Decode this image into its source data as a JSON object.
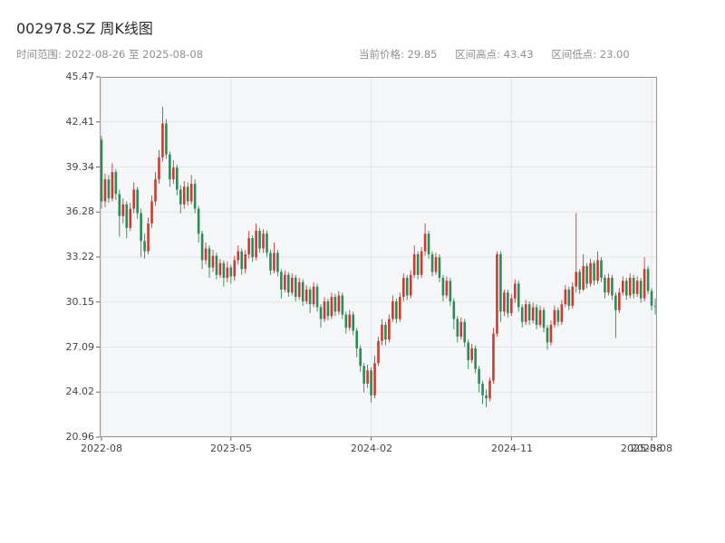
{
  "header": {
    "title": "002978.SZ 周K线图",
    "time_range": "时间范围: 2022-08-26 至 2025-08-08",
    "stats": {
      "current": "当前价格: 29.85",
      "high": "区间高点: 43.43",
      "low": "区间低点: 23.00"
    }
  },
  "chart_data": {
    "type": "candlestick",
    "symbol": "002978.SZ",
    "interval": "weekly",
    "title": "002978.SZ 周K线图",
    "current_price": 29.85,
    "range_high": 43.43,
    "range_low": 23.0,
    "ylim": [
      20.96,
      45.47
    ],
    "y_ticks": [
      "45.47",
      "42.41",
      "39.34",
      "36.28",
      "33.22",
      "30.15",
      "27.09",
      "24.02",
      "20.96"
    ],
    "x_ticks": [
      "2022-08",
      "2023-05",
      "2024-02",
      "2024-11",
      "2025-08"
    ],
    "x_tick_indices": [
      0,
      36,
      75,
      114,
      153
    ],
    "edge_label": "2025-08",
    "grid": true,
    "colors": {
      "up": "#cc3b33",
      "down": "#2e8b57",
      "grid": "#e2e4e8",
      "plot_bg": "#f5f6f8",
      "frame": "#9a9a9a"
    },
    "ohlc_columns": [
      "date",
      "open",
      "high",
      "low",
      "close"
    ],
    "ohlc": [
      [
        "2022-08-26",
        41.2,
        41.45,
        36.5,
        37.0
      ],
      [
        "2022-09-02",
        37.0,
        38.9,
        36.6,
        38.5
      ],
      [
        "2022-09-09",
        38.5,
        38.8,
        36.9,
        37.2
      ],
      [
        "2022-09-16",
        37.2,
        39.6,
        37.0,
        39.0
      ],
      [
        "2022-09-23",
        39.0,
        39.2,
        37.1,
        37.5
      ],
      [
        "2022-09-30",
        37.5,
        37.8,
        34.6,
        36.0
      ],
      [
        "2022-10-07",
        36.0,
        37.2,
        35.5,
        36.8
      ],
      [
        "2022-10-14",
        36.8,
        37.0,
        34.5,
        35.2
      ],
      [
        "2022-10-21",
        35.2,
        36.9,
        35.0,
        36.5
      ],
      [
        "2022-10-28",
        36.5,
        38.3,
        36.2,
        37.8
      ],
      [
        "2022-11-04",
        37.8,
        38.0,
        35.8,
        36.2
      ],
      [
        "2022-11-11",
        36.2,
        36.5,
        33.2,
        34.3
      ],
      [
        "2022-11-18",
        34.3,
        34.8,
        33.1,
        33.6
      ],
      [
        "2022-11-25",
        33.6,
        35.9,
        33.4,
        35.5
      ],
      [
        "2022-12-02",
        35.5,
        37.4,
        35.2,
        37.0
      ],
      [
        "2022-12-09",
        37.0,
        39.0,
        36.7,
        38.5
      ],
      [
        "2022-12-16",
        38.5,
        40.5,
        38.2,
        40.0
      ],
      [
        "2022-12-23",
        40.0,
        43.43,
        39.7,
        42.3
      ],
      [
        "2022-12-30",
        42.3,
        42.6,
        39.9,
        40.2
      ],
      [
        "2023-01-06",
        40.2,
        40.4,
        38.0,
        38.5
      ],
      [
        "2023-01-13",
        38.5,
        39.8,
        38.2,
        39.3
      ],
      [
        "2023-01-20",
        39.3,
        39.5,
        37.4,
        37.8
      ],
      [
        "2023-01-27",
        37.8,
        38.1,
        36.2,
        36.8
      ],
      [
        "2023-02-03",
        36.8,
        38.4,
        36.5,
        38.0
      ],
      [
        "2023-02-10",
        38.0,
        38.3,
        36.7,
        37.0
      ],
      [
        "2023-02-17",
        37.0,
        38.8,
        36.8,
        38.2
      ],
      [
        "2023-02-24",
        38.2,
        38.5,
        36.2,
        36.5
      ],
      [
        "2023-03-03",
        36.5,
        36.7,
        34.2,
        34.8
      ],
      [
        "2023-03-10",
        34.8,
        35.0,
        32.4,
        33.0
      ],
      [
        "2023-03-17",
        33.0,
        34.2,
        32.7,
        33.8
      ],
      [
        "2023-03-24",
        33.8,
        34.0,
        31.8,
        32.5
      ],
      [
        "2023-03-31",
        32.5,
        33.7,
        32.2,
        33.3
      ],
      [
        "2023-04-07",
        33.3,
        33.5,
        31.7,
        32.0
      ],
      [
        "2023-04-14",
        32.0,
        33.1,
        31.8,
        32.8
      ],
      [
        "2023-04-21",
        32.8,
        33.0,
        31.2,
        31.8
      ],
      [
        "2023-04-28",
        31.8,
        32.9,
        31.5,
        32.5
      ],
      [
        "2023-05-05",
        32.5,
        32.7,
        31.4,
        31.9
      ],
      [
        "2023-05-12",
        31.9,
        33.3,
        31.6,
        33.0
      ],
      [
        "2023-05-19",
        33.0,
        34.0,
        32.7,
        33.6
      ],
      [
        "2023-05-26",
        33.6,
        33.8,
        32.0,
        32.4
      ],
      [
        "2023-06-02",
        32.4,
        33.7,
        32.1,
        33.4
      ],
      [
        "2023-06-09",
        33.4,
        35.0,
        33.1,
        34.5
      ],
      [
        "2023-06-16",
        34.5,
        34.7,
        32.9,
        33.2
      ],
      [
        "2023-06-23",
        33.2,
        35.5,
        33.0,
        35.0
      ],
      [
        "2023-06-30",
        35.0,
        35.2,
        33.5,
        33.8
      ],
      [
        "2023-07-07",
        33.8,
        35.1,
        33.5,
        34.8
      ],
      [
        "2023-07-14",
        34.8,
        35.0,
        33.2,
        33.5
      ],
      [
        "2023-07-21",
        33.5,
        33.7,
        32.0,
        32.3
      ],
      [
        "2023-07-28",
        32.3,
        34.2,
        32.1,
        33.5
      ],
      [
        "2023-08-04",
        33.5,
        33.7,
        31.9,
        32.2
      ],
      [
        "2023-08-11",
        32.2,
        32.4,
        30.4,
        31.0
      ],
      [
        "2023-08-18",
        31.0,
        32.3,
        30.8,
        32.0
      ],
      [
        "2023-08-25",
        32.0,
        32.2,
        30.5,
        30.8
      ],
      [
        "2023-09-01",
        30.8,
        32.1,
        30.6,
        31.8
      ],
      [
        "2023-09-08",
        31.8,
        32.0,
        30.2,
        30.5
      ],
      [
        "2023-09-15",
        30.5,
        31.8,
        30.3,
        31.5
      ],
      [
        "2023-09-22",
        31.5,
        31.7,
        29.9,
        30.2
      ],
      [
        "2023-09-29",
        30.2,
        31.3,
        30.0,
        31.0
      ],
      [
        "2023-10-06",
        31.0,
        31.2,
        29.4,
        30.0
      ],
      [
        "2023-10-13",
        30.0,
        31.5,
        29.8,
        31.2
      ],
      [
        "2023-10-20",
        31.2,
        31.4,
        29.5,
        29.8
      ],
      [
        "2023-10-27",
        29.8,
        30.0,
        28.4,
        29.0
      ],
      [
        "2023-11-03",
        29.0,
        30.5,
        28.8,
        30.2
      ],
      [
        "2023-11-10",
        30.2,
        30.4,
        28.9,
        29.2
      ],
      [
        "2023-11-17",
        29.2,
        30.8,
        29.0,
        30.5
      ],
      [
        "2023-11-24",
        30.5,
        30.7,
        29.2,
        29.5
      ],
      [
        "2023-12-01",
        29.5,
        30.9,
        29.3,
        30.6
      ],
      [
        "2023-12-08",
        30.6,
        30.8,
        29.0,
        29.3
      ],
      [
        "2023-12-15",
        29.3,
        29.5,
        28.0,
        28.4
      ],
      [
        "2023-12-22",
        28.4,
        29.6,
        28.2,
        29.3
      ],
      [
        "2023-12-29",
        29.3,
        29.5,
        27.9,
        28.2
      ],
      [
        "2024-01-05",
        28.2,
        28.4,
        26.4,
        27.0
      ],
      [
        "2024-01-12",
        27.0,
        27.2,
        25.4,
        25.8
      ],
      [
        "2024-01-19",
        25.8,
        26.0,
        24.0,
        24.6
      ],
      [
        "2024-01-26",
        24.6,
        25.9,
        24.3,
        25.5
      ],
      [
        "2024-02-02",
        25.5,
        25.7,
        23.3,
        23.8
      ],
      [
        "2024-02-09",
        23.8,
        26.5,
        23.6,
        26.0
      ],
      [
        "2024-02-16",
        26.0,
        27.8,
        25.8,
        27.5
      ],
      [
        "2024-02-23",
        27.5,
        29.0,
        27.2,
        28.6
      ],
      [
        "2024-03-01",
        28.6,
        28.8,
        27.2,
        27.6
      ],
      [
        "2024-03-08",
        27.6,
        29.3,
        27.4,
        29.0
      ],
      [
        "2024-03-15",
        29.0,
        30.6,
        28.8,
        30.2
      ],
      [
        "2024-03-22",
        30.2,
        30.4,
        28.7,
        29.0
      ],
      [
        "2024-03-29",
        29.0,
        30.8,
        28.8,
        30.5
      ],
      [
        "2024-04-05",
        30.5,
        32.1,
        30.2,
        31.8
      ],
      [
        "2024-04-12",
        31.8,
        32.0,
        30.3,
        30.6
      ],
      [
        "2024-04-19",
        30.6,
        32.3,
        30.4,
        32.0
      ],
      [
        "2024-04-26",
        32.0,
        34.0,
        31.8,
        33.4
      ],
      [
        "2024-05-03",
        33.4,
        33.6,
        31.7,
        32.0
      ],
      [
        "2024-05-10",
        32.0,
        33.9,
        31.8,
        33.6
      ],
      [
        "2024-05-17",
        33.6,
        35.5,
        33.3,
        34.8
      ],
      [
        "2024-05-24",
        34.8,
        35.0,
        33.1,
        33.4
      ],
      [
        "2024-05-31",
        33.4,
        33.6,
        31.9,
        32.2
      ],
      [
        "2024-06-07",
        32.2,
        33.5,
        32.0,
        33.2
      ],
      [
        "2024-06-14",
        33.2,
        33.4,
        31.5,
        31.8
      ],
      [
        "2024-06-21",
        31.8,
        32.0,
        30.2,
        30.6
      ],
      [
        "2024-06-28",
        30.6,
        31.9,
        30.4,
        31.6
      ],
      [
        "2024-07-05",
        31.6,
        31.8,
        29.9,
        30.2
      ],
      [
        "2024-07-12",
        30.2,
        30.4,
        28.3,
        29.0
      ],
      [
        "2024-07-19",
        29.0,
        29.2,
        27.4,
        27.8
      ],
      [
        "2024-07-26",
        27.8,
        29.1,
        27.6,
        28.8
      ],
      [
        "2024-08-02",
        28.8,
        29.0,
        27.1,
        27.4
      ],
      [
        "2024-08-09",
        27.4,
        27.6,
        25.6,
        26.2
      ],
      [
        "2024-08-16",
        26.2,
        27.3,
        26.0,
        27.0
      ],
      [
        "2024-08-23",
        27.0,
        27.2,
        25.3,
        25.6
      ],
      [
        "2024-08-30",
        25.6,
        25.8,
        24.0,
        24.6
      ],
      [
        "2024-09-06",
        24.6,
        24.8,
        23.2,
        23.8
      ],
      [
        "2024-09-13",
        23.8,
        24.2,
        23.0,
        23.6
      ],
      [
        "2024-09-20",
        23.6,
        25.0,
        23.4,
        24.8
      ],
      [
        "2024-09-27",
        24.8,
        28.4,
        24.6,
        28.0
      ],
      [
        "2024-10-04",
        28.0,
        33.6,
        27.8,
        33.4
      ],
      [
        "2024-10-11",
        33.4,
        33.6,
        28.8,
        29.5
      ],
      [
        "2024-10-18",
        29.5,
        31.0,
        29.2,
        30.8
      ],
      [
        "2024-10-25",
        30.8,
        31.0,
        29.1,
        29.4
      ],
      [
        "2024-11-01",
        29.4,
        30.7,
        29.2,
        30.4
      ],
      [
        "2024-11-08",
        30.4,
        31.7,
        30.1,
        31.4
      ],
      [
        "2024-11-15",
        31.4,
        31.6,
        29.5,
        29.8
      ],
      [
        "2024-11-22",
        29.8,
        30.0,
        28.4,
        28.8
      ],
      [
        "2024-11-29",
        28.8,
        30.3,
        28.6,
        30.0
      ],
      [
        "2024-12-06",
        30.0,
        30.2,
        28.6,
        28.9
      ],
      [
        "2024-12-13",
        28.9,
        30.1,
        28.7,
        29.8
      ],
      [
        "2024-12-20",
        29.8,
        30.0,
        28.3,
        28.6
      ],
      [
        "2024-12-27",
        28.6,
        29.9,
        28.4,
        29.6
      ],
      [
        "2025-01-03",
        29.6,
        29.8,
        28.1,
        28.4
      ],
      [
        "2025-01-10",
        28.4,
        28.6,
        26.9,
        27.4
      ],
      [
        "2025-01-17",
        27.4,
        28.9,
        27.2,
        28.6
      ],
      [
        "2025-01-24",
        28.6,
        29.9,
        28.4,
        29.6
      ],
      [
        "2025-01-31",
        29.6,
        29.8,
        28.5,
        28.8
      ],
      [
        "2025-02-07",
        28.8,
        30.3,
        28.6,
        30.0
      ],
      [
        "2025-02-14",
        30.0,
        31.3,
        29.8,
        31.0
      ],
      [
        "2025-02-21",
        31.0,
        31.2,
        29.6,
        29.9
      ],
      [
        "2025-02-28",
        29.9,
        31.5,
        29.7,
        31.2
      ],
      [
        "2025-03-07",
        31.2,
        36.2,
        30.8,
        32.2
      ],
      [
        "2025-03-14",
        32.2,
        32.4,
        30.7,
        31.0
      ],
      [
        "2025-03-21",
        31.0,
        33.4,
        30.9,
        32.6
      ],
      [
        "2025-03-28",
        32.6,
        32.8,
        31.1,
        31.4
      ],
      [
        "2025-04-04",
        31.4,
        33.1,
        31.2,
        32.8
      ],
      [
        "2025-04-11",
        32.8,
        33.0,
        31.3,
        31.6
      ],
      [
        "2025-04-18",
        31.6,
        33.6,
        31.4,
        33.0
      ],
      [
        "2025-04-25",
        33.0,
        33.2,
        31.5,
        31.8
      ],
      [
        "2025-05-02",
        31.8,
        32.0,
        30.4,
        30.8
      ],
      [
        "2025-05-09",
        30.8,
        32.1,
        30.6,
        31.8
      ],
      [
        "2025-05-16",
        31.8,
        32.0,
        30.3,
        30.6
      ],
      [
        "2025-05-23",
        30.6,
        30.8,
        27.7,
        29.6
      ],
      [
        "2025-05-30",
        29.6,
        31.1,
        29.4,
        30.8
      ],
      [
        "2025-06-06",
        30.8,
        31.9,
        30.6,
        31.6
      ],
      [
        "2025-06-13",
        31.6,
        31.8,
        30.3,
        30.6
      ],
      [
        "2025-06-20",
        30.6,
        32.1,
        30.4,
        31.8
      ],
      [
        "2025-06-27",
        31.8,
        32.0,
        30.4,
        30.7
      ],
      [
        "2025-07-04",
        30.7,
        31.9,
        30.5,
        31.6
      ],
      [
        "2025-07-11",
        31.6,
        31.8,
        30.1,
        30.4
      ],
      [
        "2025-07-18",
        30.4,
        33.2,
        30.2,
        32.4
      ],
      [
        "2025-07-25",
        32.4,
        32.6,
        30.7,
        30.9
      ],
      [
        "2025-08-01",
        30.9,
        31.1,
        29.6,
        29.9
      ],
      [
        "2025-08-08",
        29.9,
        30.4,
        29.3,
        29.85
      ]
    ]
  }
}
